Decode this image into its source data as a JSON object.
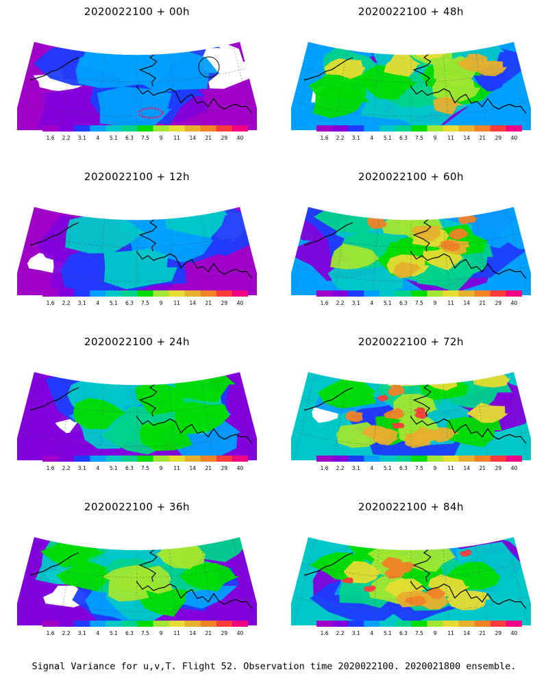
{
  "colorbar": {
    "labels": [
      "1.6",
      "2.2",
      "3.1",
      "4",
      "5.1",
      "6.3",
      "7.5",
      "9",
      "11",
      "14",
      "21",
      "29",
      "40"
    ],
    "colors": [
      "#a000c8",
      "#8200dc",
      "#1e3cff",
      "#00a0ff",
      "#00c8c8",
      "#00d28c",
      "#00dc00",
      "#a0e632",
      "#e6dc32",
      "#e6af2d",
      "#f08228",
      "#fa3c3c",
      "#f00082"
    ]
  },
  "panels": [
    {
      "title": "2020022100 + 00h",
      "level": 0
    },
    {
      "title": "2020022100 + 48h",
      "level": 4
    },
    {
      "title": "2020022100 + 12h",
      "level": 1
    },
    {
      "title": "2020022100 + 60h",
      "level": 5
    },
    {
      "title": "2020022100 + 24h",
      "level": 2
    },
    {
      "title": "2020022100 + 72h",
      "level": 6
    },
    {
      "title": "2020022100 + 36h",
      "level": 3
    },
    {
      "title": "2020022100 + 84h",
      "level": 7
    }
  ],
  "footer": "Signal Variance for u,v,T. Flight 52. Observation time 2020022100. 2020021800 ensemble."
}
